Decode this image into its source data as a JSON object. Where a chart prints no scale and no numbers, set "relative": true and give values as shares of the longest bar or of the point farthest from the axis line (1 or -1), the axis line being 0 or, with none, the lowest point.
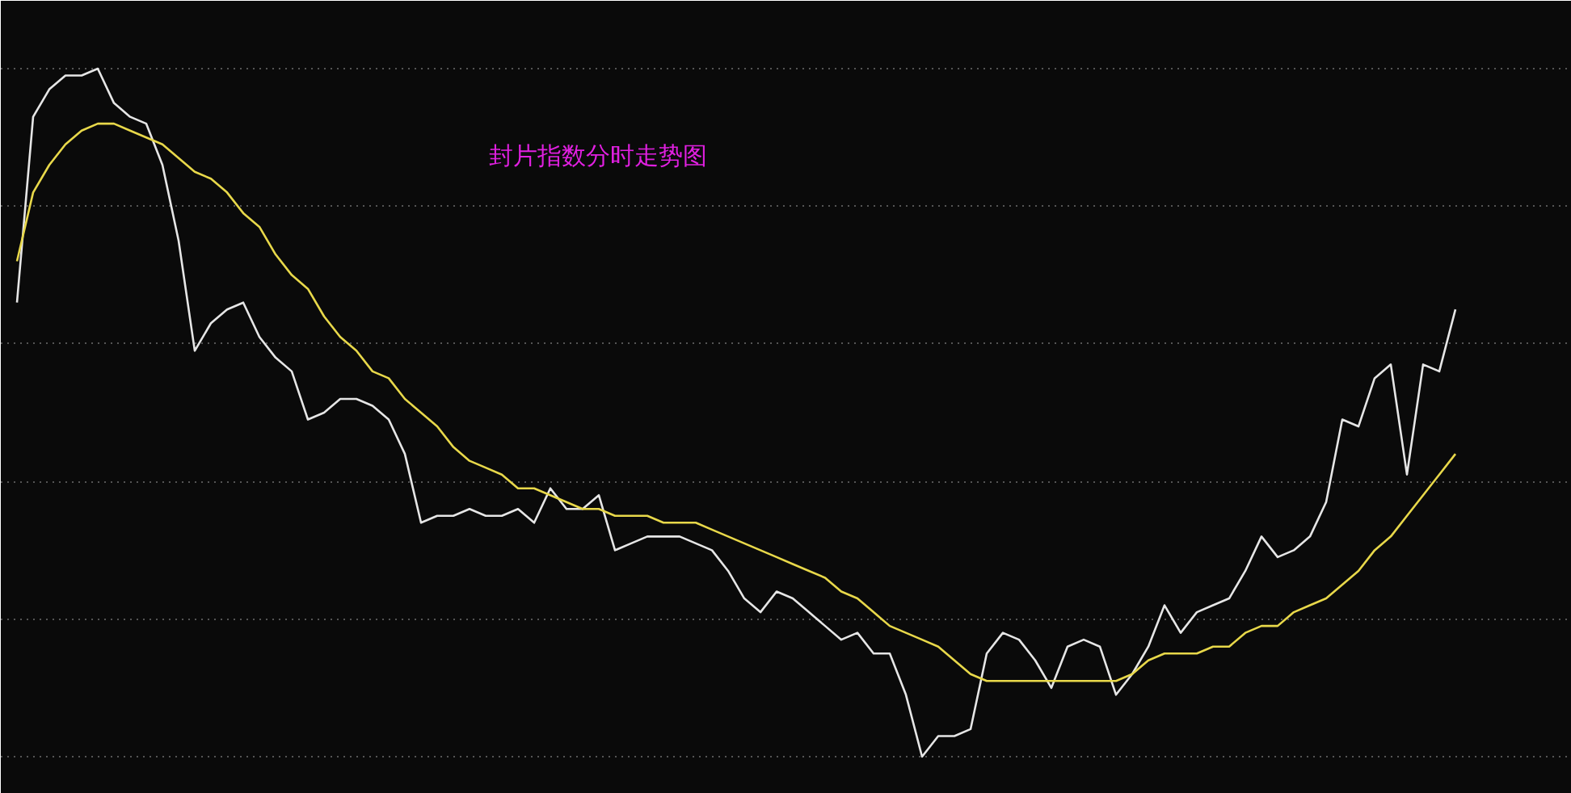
{
  "chart_data": {
    "type": "line",
    "title": "封片指数分时走势图",
    "relative": true,
    "grid": "y",
    "line_style": "solid",
    "marker": "none",
    "categories": [
      null,
      null,
      null,
      null,
      null,
      null,
      null,
      null,
      null,
      null,
      null,
      null,
      null,
      null,
      null,
      null,
      null,
      null,
      null,
      null,
      null,
      null,
      null,
      null,
      null,
      null,
      null,
      null,
      null,
      null,
      null,
      null,
      null,
      null,
      null,
      null,
      null,
      null,
      null,
      null,
      null,
      null,
      null,
      null,
      null,
      null,
      null,
      null,
      null,
      null,
      null,
      null,
      null,
      null,
      null,
      null,
      null,
      null,
      null,
      null,
      null,
      null,
      null,
      null,
      null,
      null,
      null,
      null,
      null,
      null,
      null,
      null,
      null,
      null,
      null,
      null,
      null,
      null,
      null,
      null,
      null,
      null,
      null,
      null,
      null,
      null,
      null,
      null,
      null,
      null
    ],
    "series": [
      {
        "color": "#e6e6e6",
        "values": [
          0.66,
          0.93,
          0.97,
          0.99,
          0.99,
          1.0,
          0.95,
          0.93,
          0.92,
          0.86,
          0.75,
          0.59,
          0.63,
          0.65,
          0.66,
          0.61,
          0.58,
          0.56,
          0.49,
          0.5,
          0.52,
          0.52,
          0.51,
          0.49,
          0.44,
          0.34,
          0.35,
          0.35,
          0.36,
          0.35,
          0.35,
          0.36,
          0.34,
          0.39,
          0.36,
          0.36,
          0.38,
          0.3,
          0.31,
          0.32,
          0.32,
          0.32,
          0.31,
          0.3,
          0.27,
          0.23,
          0.21,
          0.24,
          0.23,
          0.21,
          0.19,
          0.17,
          0.18,
          0.15,
          0.15,
          0.09,
          0.0,
          0.03,
          0.03,
          0.04,
          0.15,
          0.18,
          0.17,
          0.14,
          0.1,
          0.16,
          0.17,
          0.16,
          0.09,
          0.12,
          0.16,
          0.22,
          0.18,
          0.21,
          0.22,
          0.23,
          0.27,
          0.32,
          0.29,
          0.3,
          0.32,
          0.37,
          0.49,
          0.48,
          0.55,
          0.57,
          0.41,
          0.57,
          0.56,
          0.65
        ]
      },
      {
        "color": "#e8d84a",
        "values": [
          0.72,
          0.82,
          0.86,
          0.89,
          0.91,
          0.92,
          0.92,
          0.91,
          0.9,
          0.89,
          0.87,
          0.85,
          0.84,
          0.82,
          0.79,
          0.77,
          0.73,
          0.7,
          0.68,
          0.64,
          0.61,
          0.59,
          0.56,
          0.55,
          0.52,
          0.5,
          0.48,
          0.45,
          0.43,
          0.42,
          0.41,
          0.39,
          0.39,
          0.38,
          0.37,
          0.36,
          0.36,
          0.35,
          0.35,
          0.35,
          0.34,
          0.34,
          0.34,
          0.33,
          0.32,
          0.31,
          0.3,
          0.29,
          0.28,
          0.27,
          0.26,
          0.24,
          0.23,
          0.21,
          0.19,
          0.18,
          0.17,
          0.16,
          0.14,
          0.12,
          0.11,
          0.11,
          0.11,
          0.11,
          0.11,
          0.11,
          0.11,
          0.11,
          0.11,
          0.12,
          0.14,
          0.15,
          0.15,
          0.15,
          0.16,
          0.16,
          0.18,
          0.19,
          0.19,
          0.21,
          0.22,
          0.23,
          0.25,
          0.27,
          0.3,
          0.32,
          0.35,
          0.38,
          0.41,
          0.44
        ]
      }
    ]
  }
}
